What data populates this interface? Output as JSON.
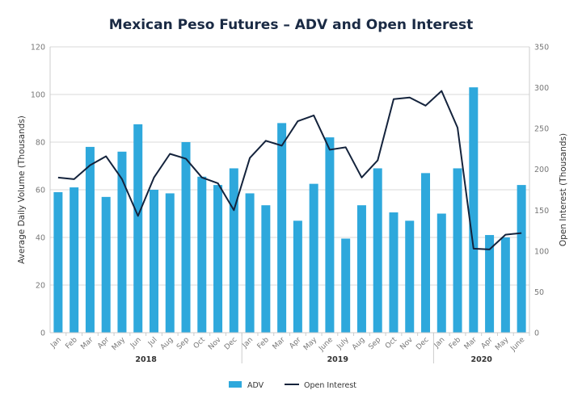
{
  "chart_data": {
    "type": "bar+line",
    "title": "Mexican Peso Futures – ADV and Open Interest",
    "ylabel_left": "Average Daily Volume (Thousands)",
    "ylabel_right": "Open Interest (Thousands)",
    "ylim_left": [
      0,
      120
    ],
    "ylim_right": [
      0,
      350
    ],
    "yticks_left": [
      0,
      20,
      40,
      60,
      80,
      100,
      120
    ],
    "yticks_right": [
      0,
      50,
      100,
      150,
      200,
      250,
      300,
      350
    ],
    "grid": true,
    "legend": "bottom",
    "categories": [
      "Jan",
      "Feb",
      "Mar",
      "Apr",
      "May",
      "Jun",
      "Jul",
      "Aug",
      "Sep",
      "Oct",
      "Nov",
      "Dec",
      "Jan",
      "Feb",
      "Mar",
      "Apr",
      "May",
      "June",
      "July",
      "Aug",
      "Sep",
      "Oct",
      "Nov",
      "Dec",
      "Jan",
      "Feb",
      "Mar",
      "Apr",
      "May",
      "June"
    ],
    "year_groups": [
      {
        "label": "2018",
        "count": 12
      },
      {
        "label": "2019",
        "count": 12
      },
      {
        "label": "2020",
        "count": 6
      }
    ],
    "series": [
      {
        "name": "ADV",
        "type": "bar",
        "axis": "left",
        "color": "#2ea8dc",
        "values": [
          59,
          61,
          78,
          57,
          76,
          87.5,
          60,
          58.5,
          80,
          65.5,
          62,
          69,
          58.5,
          53.5,
          88,
          47,
          62.5,
          82,
          39.5,
          53.5,
          69,
          50.5,
          47,
          67,
          50,
          69,
          103,
          41,
          40,
          62
        ]
      },
      {
        "name": "Open Interest",
        "type": "line",
        "axis": "right",
        "color": "#14233c",
        "values": [
          190,
          188,
          205,
          216,
          188,
          143,
          190,
          219,
          213,
          190,
          183,
          150,
          214,
          235,
          229,
          259,
          266,
          224,
          227,
          190,
          211,
          286,
          288,
          278,
          296,
          251,
          103,
          102,
          120,
          122
        ]
      }
    ]
  }
}
